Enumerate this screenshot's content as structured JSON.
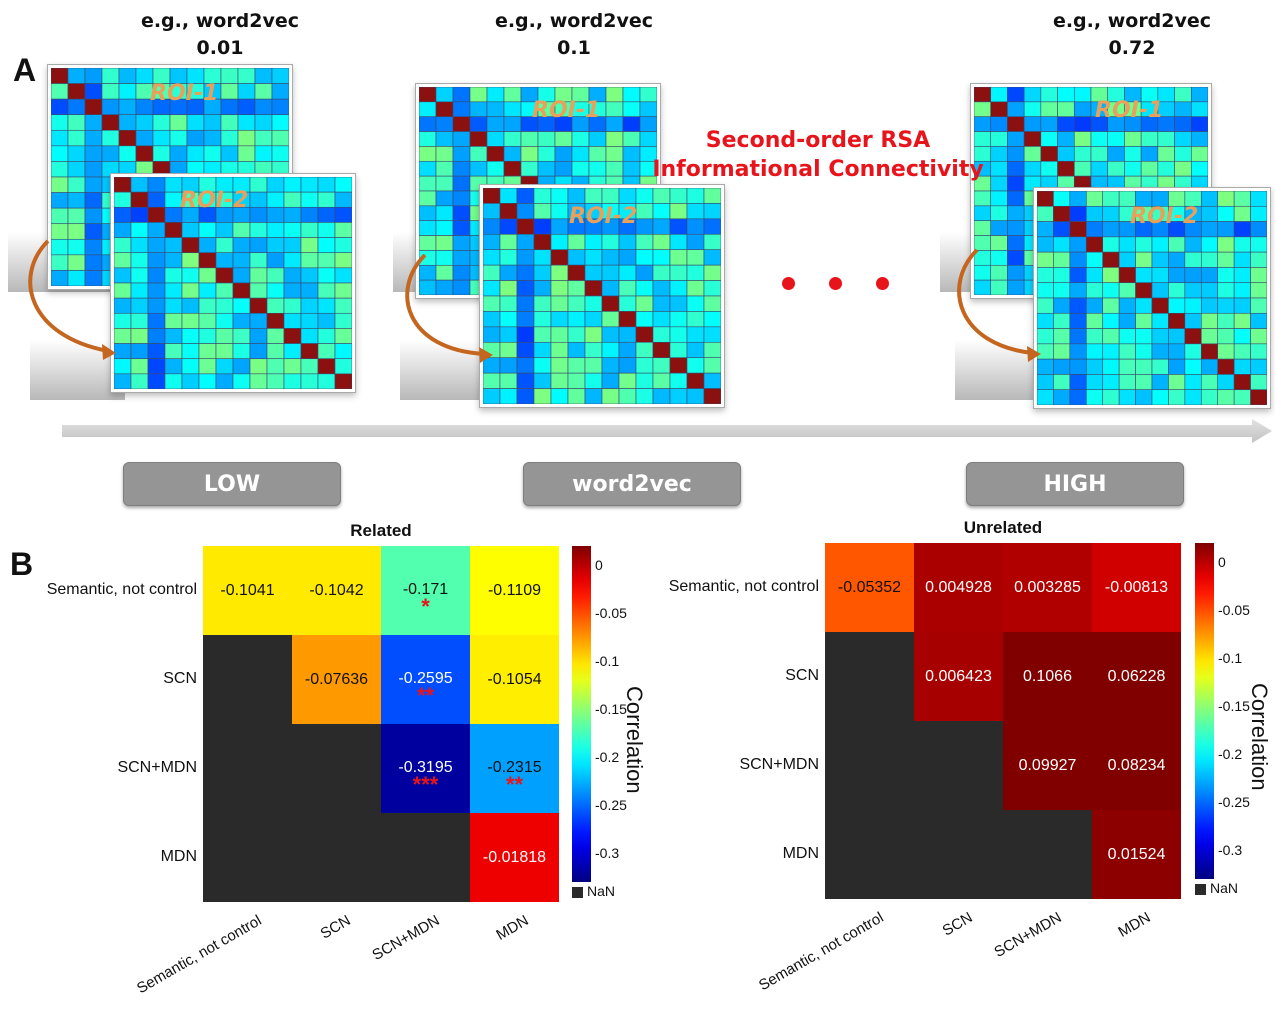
{
  "panel_a": {
    "letter": "A",
    "examples": [
      {
        "prefix": "e.g., word2vec",
        "value": "0.01"
      },
      {
        "prefix": "e.g., word2vec",
        "value": "0.1"
      },
      {
        "prefix": "e.g., word2vec",
        "value": "0.72"
      }
    ],
    "roi_labels": [
      "ROI-1",
      "ROI-2"
    ],
    "rsa_line1": "Second-order RSA",
    "rsa_line2": "Informational Connectivity",
    "ellipsis": "...",
    "buttons": {
      "low": "LOW",
      "mid": "word2vec",
      "high": "HIGH"
    }
  },
  "panel_b": {
    "letter": "B",
    "colorbar": {
      "label": "Correlation",
      "ticks": [
        "0",
        "-0.05",
        "-0.1",
        "-0.15",
        "-0.2",
        "-0.25",
        "-0.3"
      ],
      "nan_label": "NaN"
    },
    "chart_data": [
      {
        "type": "heatmap",
        "title": "Related",
        "rows": [
          "Semantic, not control",
          "SCN",
          "SCN+MDN",
          "MDN"
        ],
        "columns": [
          "Semantic, not control",
          "SCN",
          "SCN+MDN",
          "MDN"
        ],
        "values": [
          [
            -0.1041,
            -0.1042,
            -0.171,
            -0.1109
          ],
          [
            null,
            -0.07636,
            -0.2595,
            -0.1054
          ],
          [
            null,
            null,
            -0.3195,
            -0.2315
          ],
          [
            null,
            null,
            null,
            -0.01818
          ]
        ],
        "value_labels": [
          [
            "-0.1041",
            "-0.1042",
            "-0.171",
            "-0.1109"
          ],
          [
            "",
            "-0.07636",
            "-0.2595",
            "-0.1054"
          ],
          [
            "",
            "",
            "-0.3195",
            "-0.2315"
          ],
          [
            "",
            "",
            "",
            "-0.01818"
          ]
        ],
        "significance": [
          [
            "",
            "",
            "*",
            ""
          ],
          [
            "",
            "",
            "**",
            ""
          ],
          [
            "",
            "",
            "***",
            "**"
          ],
          [
            "",
            "",
            "",
            ""
          ]
        ],
        "colormap": "jet",
        "clim": [
          -0.33,
          0.02
        ]
      },
      {
        "type": "heatmap",
        "title": "Unrelated",
        "rows": [
          "Semantic, not control",
          "SCN",
          "SCN+MDN",
          "MDN"
        ],
        "columns": [
          "Semantic, not control",
          "SCN",
          "SCN+MDN",
          "MDN"
        ],
        "values": [
          [
            -0.05352,
            0.004928,
            0.003285,
            -0.00813
          ],
          [
            null,
            0.006423,
            0.1066,
            0.06228
          ],
          [
            null,
            null,
            0.09927,
            0.08234
          ],
          [
            null,
            null,
            null,
            0.01524
          ]
        ],
        "value_labels": [
          [
            "-0.05352",
            "0.004928",
            "0.003285",
            "-0.00813"
          ],
          [
            "",
            "0.006423",
            "0.1066",
            "0.06228"
          ],
          [
            "",
            "",
            "0.09927",
            "0.08234"
          ],
          [
            "",
            "",
            "",
            "0.01524"
          ]
        ],
        "significance": [
          [
            "",
            "",
            "",
            ""
          ],
          [
            "",
            "",
            "",
            ""
          ],
          [
            "",
            "",
            "",
            ""
          ],
          [
            "",
            "",
            "",
            ""
          ]
        ],
        "colormap": "jet",
        "clim": [
          -0.33,
          0.02
        ]
      }
    ]
  }
}
